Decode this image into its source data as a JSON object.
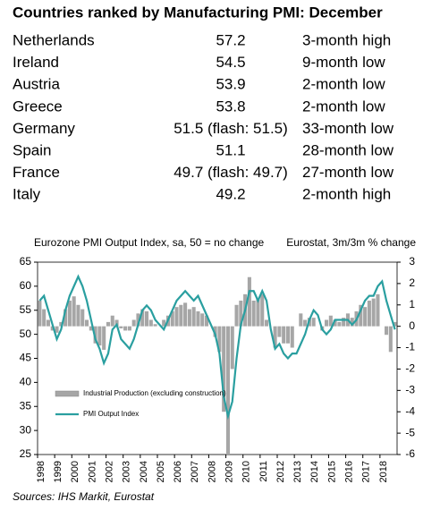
{
  "title": "Countries ranked by Manufacturing PMI: December",
  "table": {
    "rows": [
      [
        "Netherlands",
        "57.2",
        "3-month high"
      ],
      [
        "Ireland",
        "54.5",
        "9-month low"
      ],
      [
        "Austria",
        "53.9",
        "2-month low"
      ],
      [
        "Greece",
        "53.8",
        "2-month low"
      ],
      [
        "Germany",
        "51.5 (flash: 51.5)",
        "33-month low"
      ],
      [
        "Spain",
        "51.1",
        "28-month low"
      ],
      [
        "France",
        "49.7 (flash: 49.7)",
        "27-month low"
      ],
      [
        "Italy",
        "49.2",
        "2-month high"
      ]
    ]
  },
  "chart_data": {
    "type": "combo",
    "y_label": "Eurozone PMI  Output Index, sa, 50 = no change",
    "y2_label": "Eurostat, 3m/3m % change",
    "source": "Sources: IHS Markit, Eurostat",
    "x": [
      1998.125,
      1998.375,
      1998.625,
      1998.875,
      1999.125,
      1999.375,
      1999.625,
      1999.875,
      2000.125,
      2000.375,
      2000.625,
      2000.875,
      2001.125,
      2001.375,
      2001.625,
      2001.875,
      2002.125,
      2002.375,
      2002.625,
      2002.875,
      2003.125,
      2003.375,
      2003.625,
      2003.875,
      2004.125,
      2004.375,
      2004.625,
      2004.875,
      2005.125,
      2005.375,
      2005.625,
      2005.875,
      2006.125,
      2006.375,
      2006.625,
      2006.875,
      2007.125,
      2007.375,
      2007.625,
      2007.875,
      2008.125,
      2008.375,
      2008.625,
      2008.875,
      2009.125,
      2009.375,
      2009.625,
      2009.875,
      2010.125,
      2010.375,
      2010.625,
      2010.875,
      2011.125,
      2011.375,
      2011.625,
      2011.875,
      2012.125,
      2012.375,
      2012.625,
      2012.875,
      2013.125,
      2013.375,
      2013.625,
      2013.875,
      2014.125,
      2014.375,
      2014.625,
      2014.875,
      2015.125,
      2015.375,
      2015.625,
      2015.875,
      2016.125,
      2016.375,
      2016.625,
      2016.875,
      2017.125,
      2017.375,
      2017.625,
      2017.875,
      2018.125,
      2018.375,
      2018.625,
      2018.875
    ],
    "xlim": [
      1998,
      2019
    ],
    "xticks": [
      1998,
      1999,
      2000,
      2001,
      2002,
      2003,
      2004,
      2005,
      2006,
      2007,
      2008,
      2009,
      2010,
      2011,
      2012,
      2013,
      2014,
      2015,
      2016,
      2017,
      2018
    ],
    "ylim": [
      25,
      65
    ],
    "yticks": [
      25,
      30,
      35,
      40,
      45,
      50,
      55,
      60,
      65
    ],
    "y2lim": [
      -6,
      3
    ],
    "y2ticks": [
      -6,
      -5,
      -4,
      -3,
      -2,
      -1,
      0,
      1,
      2,
      3
    ],
    "series": [
      {
        "name": "Industrial Production (excluding construction)",
        "type": "bar",
        "axis": "y2",
        "color": "#a6a6a6",
        "values": [
          1.2,
          0.8,
          0.3,
          -0.2,
          -0.3,
          0.2,
          0.8,
          1.2,
          1.4,
          1.0,
          0.8,
          0.3,
          -0.2,
          -0.8,
          -0.9,
          -1.1,
          0.2,
          0.5,
          0.3,
          -0.1,
          -0.2,
          -0.2,
          0.3,
          0.6,
          0.8,
          0.7,
          0.3,
          0.1,
          0.0,
          0.3,
          0.5,
          0.7,
          0.9,
          1.0,
          1.1,
          0.8,
          0.9,
          0.7,
          0.6,
          0.5,
          0.0,
          -0.5,
          -1.2,
          -4.0,
          -6.0,
          -2.0,
          1.0,
          1.2,
          1.5,
          2.3,
          1.2,
          1.3,
          1.5,
          0.3,
          0.0,
          -1.0,
          -0.5,
          -0.8,
          -0.8,
          -1.0,
          0.0,
          0.6,
          0.3,
          0.4,
          0.4,
          0.0,
          -0.2,
          0.3,
          0.5,
          0.3,
          0.2,
          0.4,
          0.6,
          0.4,
          0.7,
          1.0,
          0.9,
          1.2,
          1.3,
          1.5,
          0.0,
          -0.4,
          -1.2,
          0.2
        ]
      },
      {
        "name": "PMI Output Index",
        "type": "line",
        "color": "#2a9fa0",
        "values": [
          57,
          58,
          55,
          52,
          49,
          51,
          55,
          58,
          60,
          62,
          60,
          57,
          53,
          49,
          47,
          44,
          46,
          51,
          52,
          49,
          48,
          47,
          49,
          52,
          55,
          56,
          55,
          53,
          52,
          51,
          53,
          55,
          57,
          58,
          59,
          58,
          57,
          58,
          56,
          54,
          52,
          50,
          46,
          37,
          33,
          36,
          45,
          52,
          55,
          59,
          59,
          57,
          59,
          57,
          51,
          47,
          48,
          46,
          45,
          46,
          46,
          48,
          50,
          53,
          55,
          54,
          51,
          50,
          51,
          53,
          53,
          53,
          53,
          52,
          53,
          55,
          57,
          58,
          58,
          60,
          61,
          57,
          54,
          51
        ]
      }
    ]
  }
}
